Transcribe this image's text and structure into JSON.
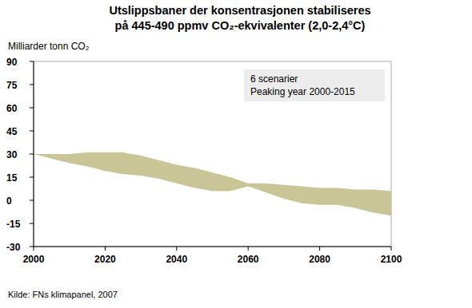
{
  "chart_data": {
    "type": "range_area",
    "title": "Utslippsbaner der konsentrasjonen stabiliseres",
    "subtitle": "på 445-490 ppmv CO₂-ekvivalenter (2,0-2,4°C)",
    "y_label": "Milliarder tonn CO₂",
    "annotations": [
      "6 scenarier",
      "Peaking year 2000-2015"
    ],
    "source": "Kilde: FNs klimapanel, 2007",
    "x": [
      2000,
      2005,
      2010,
      2015,
      2020,
      2025,
      2030,
      2035,
      2040,
      2045,
      2050,
      2055,
      2060,
      2065,
      2070,
      2075,
      2080,
      2085,
      2090,
      2095,
      2100
    ],
    "values": [
      30,
      30,
      30,
      31,
      31,
      31,
      29,
      26,
      23,
      21,
      18,
      15,
      11,
      11,
      10,
      9,
      8,
      8,
      7,
      7,
      6
    ],
    "lower": [
      30,
      27,
      24,
      22,
      19,
      17,
      16,
      14,
      11,
      8,
      6,
      6,
      9,
      5,
      1,
      -2,
      -3,
      -3,
      -5,
      -8,
      -10
    ],
    "color": "#c9c596",
    "xlim": [
      2000,
      2100
    ],
    "xticks": [
      2000,
      2020,
      2040,
      2060,
      2080,
      2100
    ],
    "ylim": [
      -30,
      90
    ],
    "yticks": [
      -30,
      -15,
      0,
      15,
      30,
      45,
      60,
      75,
      90
    ],
    "grid": false
  }
}
